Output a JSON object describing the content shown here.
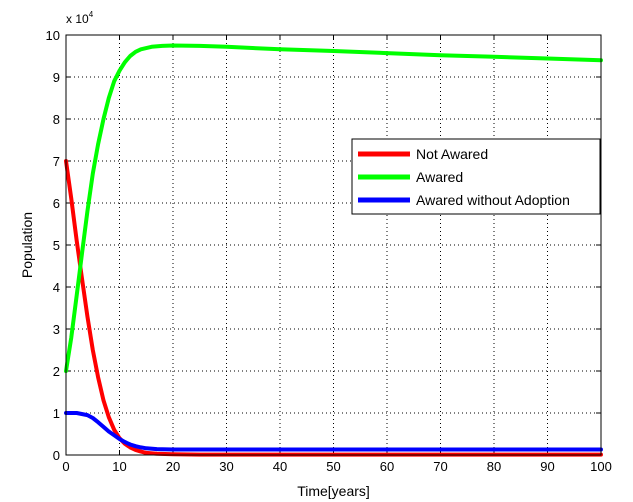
{
  "chart_data": {
    "type": "line",
    "xlabel": "Time[years]",
    "ylabel": "Population",
    "exponent_label": {
      "base": "x 10",
      "power": "4"
    },
    "xlim": [
      0,
      100
    ],
    "ylim": [
      0,
      10
    ],
    "x_ticks": [
      0,
      10,
      20,
      30,
      40,
      50,
      60,
      70,
      80,
      90,
      100
    ],
    "y_ticks": [
      0,
      1,
      2,
      3,
      4,
      5,
      6,
      7,
      8,
      9,
      10
    ],
    "grid": true,
    "legend_position": "right-center",
    "series": [
      {
        "name": "Not Awared",
        "color": "#ff0000",
        "points": [
          [
            0,
            7.0
          ],
          [
            1,
            6.1
          ],
          [
            2,
            5.1
          ],
          [
            3,
            4.2
          ],
          [
            4,
            3.3
          ],
          [
            5,
            2.5
          ],
          [
            6,
            1.85
          ],
          [
            7,
            1.3
          ],
          [
            8,
            0.9
          ],
          [
            9,
            0.6
          ],
          [
            10,
            0.4
          ],
          [
            11,
            0.27
          ],
          [
            12,
            0.18
          ],
          [
            13,
            0.12
          ],
          [
            14,
            0.08
          ],
          [
            15,
            0.05
          ],
          [
            17,
            0.03
          ],
          [
            20,
            0.02
          ],
          [
            25,
            0.01
          ],
          [
            30,
            0.01
          ],
          [
            100,
            0.01
          ]
        ]
      },
      {
        "name": "Awared",
        "color": "#00ff00",
        "points": [
          [
            0,
            2.0
          ],
          [
            1,
            2.8
          ],
          [
            2,
            3.8
          ],
          [
            3,
            4.8
          ],
          [
            4,
            5.8
          ],
          [
            5,
            6.7
          ],
          [
            6,
            7.4
          ],
          [
            7,
            8.0
          ],
          [
            8,
            8.5
          ],
          [
            9,
            8.9
          ],
          [
            10,
            9.15
          ],
          [
            11,
            9.35
          ],
          [
            12,
            9.5
          ],
          [
            13,
            9.6
          ],
          [
            14,
            9.66
          ],
          [
            16,
            9.72
          ],
          [
            18,
            9.74
          ],
          [
            20,
            9.75
          ],
          [
            25,
            9.74
          ],
          [
            30,
            9.72
          ],
          [
            40,
            9.66
          ],
          [
            50,
            9.62
          ],
          [
            60,
            9.57
          ],
          [
            70,
            9.52
          ],
          [
            80,
            9.48
          ],
          [
            90,
            9.44
          ],
          [
            100,
            9.4
          ]
        ]
      },
      {
        "name": "Awared without Adoption",
        "color": "#0000ff",
        "points": [
          [
            0,
            1.0
          ],
          [
            2,
            1.0
          ],
          [
            4,
            0.95
          ],
          [
            5,
            0.88
          ],
          [
            6,
            0.78
          ],
          [
            7,
            0.67
          ],
          [
            8,
            0.56
          ],
          [
            9,
            0.47
          ],
          [
            10,
            0.38
          ],
          [
            11,
            0.31
          ],
          [
            12,
            0.25
          ],
          [
            13,
            0.21
          ],
          [
            14,
            0.18
          ],
          [
            15,
            0.16
          ],
          [
            17,
            0.14
          ],
          [
            20,
            0.13
          ],
          [
            25,
            0.13
          ],
          [
            100,
            0.13
          ]
        ]
      }
    ]
  }
}
